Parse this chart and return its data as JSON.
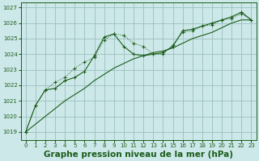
{
  "background_color": "#cde8e8",
  "grid_color": "#9bbfbf",
  "line_color_dark": "#1a5c1a",
  "line_color_mid": "#2a7a2a",
  "xlabel": "Graphe pression niveau de la mer (hPa)",
  "xlabel_fontsize": 7.5,
  "ylim": [
    1018.5,
    1027.3
  ],
  "xlim": [
    -0.5,
    23.5
  ],
  "yticks": [
    1019,
    1020,
    1021,
    1022,
    1023,
    1024,
    1025,
    1026,
    1027
  ],
  "xticks": [
    0,
    1,
    2,
    3,
    4,
    5,
    6,
    7,
    8,
    9,
    10,
    11,
    12,
    13,
    14,
    15,
    16,
    17,
    18,
    19,
    20,
    21,
    22,
    23
  ],
  "series1_x": [
    0,
    1,
    2,
    3,
    4,
    5,
    6,
    7,
    8,
    9,
    10,
    11,
    12,
    13,
    14,
    15,
    16,
    17,
    18,
    19,
    20,
    21,
    22,
    23
  ],
  "series1_y": [
    1019.0,
    1020.7,
    1021.7,
    1022.2,
    1022.5,
    1023.1,
    1023.5,
    1023.8,
    1024.9,
    1025.3,
    1025.2,
    1024.7,
    1024.5,
    1024.0,
    1024.0,
    1024.6,
    1025.4,
    1025.5,
    1025.8,
    1025.9,
    1026.2,
    1026.3,
    1026.6,
    1026.2
  ],
  "series2_x": [
    0,
    1,
    2,
    3,
    4,
    5,
    6,
    7,
    8,
    9,
    10,
    11,
    12,
    13,
    14,
    15,
    16,
    17,
    18,
    19,
    20,
    21,
    22,
    23
  ],
  "series2_y": [
    1019.0,
    1020.7,
    1021.7,
    1021.8,
    1022.3,
    1022.5,
    1022.9,
    1023.9,
    1025.1,
    1025.3,
    1024.5,
    1024.0,
    1023.9,
    1024.0,
    1024.1,
    1024.5,
    1025.5,
    1025.6,
    1025.8,
    1026.0,
    1026.2,
    1026.4,
    1026.7,
    1026.2
  ],
  "series3_x": [
    0,
    1,
    2,
    3,
    4,
    5,
    6,
    7,
    8,
    9,
    10,
    11,
    12,
    13,
    14,
    15,
    16,
    17,
    18,
    19,
    20,
    21,
    22,
    23
  ],
  "series3_y": [
    1019.0,
    1019.5,
    1020.0,
    1020.5,
    1021.0,
    1021.4,
    1021.8,
    1022.3,
    1022.7,
    1023.1,
    1023.4,
    1023.7,
    1023.9,
    1024.1,
    1024.2,
    1024.4,
    1024.7,
    1025.0,
    1025.2,
    1025.4,
    1025.7,
    1026.0,
    1026.2,
    1026.2
  ]
}
